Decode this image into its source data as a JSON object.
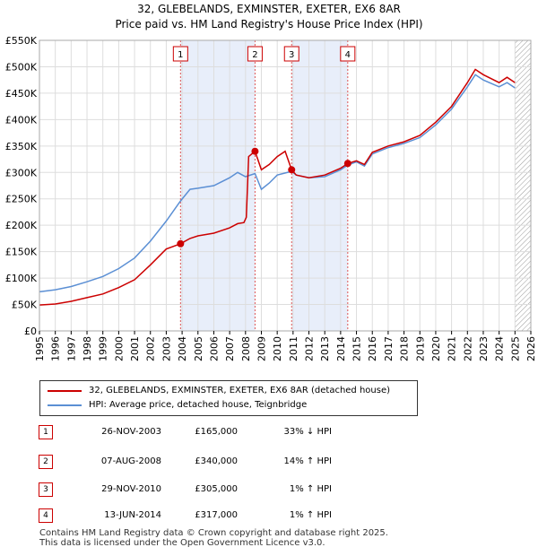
{
  "title_line1": "32, GLEBELANDS, EXMINSTER, EXETER, EX6 8AR",
  "title_line2": "Price paid vs. HM Land Registry's House Price Index (HPI)",
  "chart_data": {
    "type": "line",
    "title": "32, GLEBELANDS, EXMINSTER, EXETER, EX6 8AR — Price paid vs. HM Land Registry's House Price Index (HPI)",
    "xlabel": "",
    "ylabel": "",
    "xlim": [
      1995,
      2026
    ],
    "ylim": [
      0,
      550000
    ],
    "x_ticks": [
      "1995",
      "1996",
      "1997",
      "1998",
      "1999",
      "2000",
      "2001",
      "2002",
      "2003",
      "2004",
      "2005",
      "2006",
      "2007",
      "2008",
      "2009",
      "2010",
      "2011",
      "2012",
      "2013",
      "2014",
      "2015",
      "2016",
      "2017",
      "2018",
      "2019",
      "2020",
      "2021",
      "2022",
      "2023",
      "2024",
      "2025",
      "2026"
    ],
    "y_ticks": [
      {
        "value": 0,
        "label": "£0"
      },
      {
        "value": 50000,
        "label": "£50K"
      },
      {
        "value": 100000,
        "label": "£100K"
      },
      {
        "value": 150000,
        "label": "£150K"
      },
      {
        "value": 200000,
        "label": "£200K"
      },
      {
        "value": 250000,
        "label": "£250K"
      },
      {
        "value": 300000,
        "label": "£300K"
      },
      {
        "value": 350000,
        "label": "£350K"
      },
      {
        "value": 400000,
        "label": "£400K"
      },
      {
        "value": 450000,
        "label": "£450K"
      },
      {
        "value": 500000,
        "label": "£500K"
      },
      {
        "value": 550000,
        "label": "£550K"
      }
    ],
    "shaded_ranges": [
      [
        2003.9,
        2008.6
      ],
      [
        2010.91,
        2014.45
      ]
    ],
    "future_hatch_from": 2025.0,
    "series": [
      {
        "name": "32, GLEBELANDS, EXMINSTER, EXETER, EX6 8AR (detached house)",
        "color": "#cc0000",
        "points": [
          [
            1995,
            49000
          ],
          [
            1996,
            51000
          ],
          [
            1997,
            56000
          ],
          [
            1998,
            63000
          ],
          [
            1999,
            70000
          ],
          [
            2000,
            82000
          ],
          [
            2001,
            97000
          ],
          [
            2002,
            125000
          ],
          [
            2003,
            155000
          ],
          [
            2003.9,
            165000
          ],
          [
            2004.5,
            175000
          ],
          [
            2005,
            180000
          ],
          [
            2006,
            185000
          ],
          [
            2007,
            195000
          ],
          [
            2007.5,
            203000
          ],
          [
            2007.9,
            205000
          ],
          [
            2008.05,
            215000
          ],
          [
            2008.2,
            330000
          ],
          [
            2008.6,
            340000
          ],
          [
            2009,
            305000
          ],
          [
            2009.5,
            315000
          ],
          [
            2010,
            330000
          ],
          [
            2010.5,
            340000
          ],
          [
            2010.91,
            305000
          ],
          [
            2011.2,
            295000
          ],
          [
            2012,
            290000
          ],
          [
            2013,
            295000
          ],
          [
            2014,
            308000
          ],
          [
            2014.45,
            317000
          ],
          [
            2015,
            322000
          ],
          [
            2015.5,
            315000
          ],
          [
            2016,
            338000
          ],
          [
            2017,
            350000
          ],
          [
            2018,
            358000
          ],
          [
            2019,
            370000
          ],
          [
            2020,
            395000
          ],
          [
            2021,
            425000
          ],
          [
            2022,
            470000
          ],
          [
            2022.5,
            495000
          ],
          [
            2023,
            485000
          ],
          [
            2024,
            470000
          ],
          [
            2024.5,
            480000
          ],
          [
            2025,
            470000
          ]
        ]
      },
      {
        "name": "HPI: Average price, detached house, Teignbridge",
        "color": "#5b8fd4",
        "points": [
          [
            1995,
            74000
          ],
          [
            1996,
            78000
          ],
          [
            1997,
            84000
          ],
          [
            1998,
            93000
          ],
          [
            1999,
            103000
          ],
          [
            2000,
            118000
          ],
          [
            2001,
            138000
          ],
          [
            2002,
            170000
          ],
          [
            2003,
            208000
          ],
          [
            2003.9,
            246000
          ],
          [
            2004.5,
            268000
          ],
          [
            2005,
            270000
          ],
          [
            2006,
            275000
          ],
          [
            2007,
            290000
          ],
          [
            2007.5,
            300000
          ],
          [
            2008,
            292000
          ],
          [
            2008.6,
            298000
          ],
          [
            2009,
            268000
          ],
          [
            2009.5,
            280000
          ],
          [
            2010,
            295000
          ],
          [
            2010.91,
            302000
          ],
          [
            2011.2,
            295000
          ],
          [
            2012,
            290000
          ],
          [
            2013,
            292000
          ],
          [
            2014,
            305000
          ],
          [
            2014.45,
            314000
          ],
          [
            2015,
            320000
          ],
          [
            2015.5,
            312000
          ],
          [
            2016,
            335000
          ],
          [
            2017,
            347000
          ],
          [
            2018,
            355000
          ],
          [
            2019,
            366000
          ],
          [
            2020,
            390000
          ],
          [
            2021,
            420000
          ],
          [
            2022,
            462000
          ],
          [
            2022.5,
            485000
          ],
          [
            2023,
            475000
          ],
          [
            2024,
            462000
          ],
          [
            2024.5,
            470000
          ],
          [
            2025,
            460000
          ]
        ]
      }
    ],
    "sales": [
      {
        "id": "1",
        "x": 2003.9,
        "y": 165000
      },
      {
        "id": "2",
        "x": 2008.6,
        "y": 340000
      },
      {
        "id": "3",
        "x": 2010.91,
        "y": 305000
      },
      {
        "id": "4",
        "x": 2014.45,
        "y": 317000
      }
    ]
  },
  "legend": {
    "items": [
      {
        "label": "32, GLEBELANDS, EXMINSTER, EXETER, EX6 8AR (detached house)",
        "color": "#cc0000"
      },
      {
        "label": "HPI: Average price, detached house, Teignbridge",
        "color": "#5b8fd4"
      }
    ]
  },
  "transactions": [
    {
      "num": "1",
      "date": "26-NOV-2003",
      "price": "£165,000",
      "change": "33% ↓ HPI"
    },
    {
      "num": "2",
      "date": "07-AUG-2008",
      "price": "£340,000",
      "change": "14% ↑ HPI"
    },
    {
      "num": "3",
      "date": "29-NOV-2010",
      "price": "£305,000",
      "change": "1% ↑ HPI"
    },
    {
      "num": "4",
      "date": "13-JUN-2014",
      "price": "£317,000",
      "change": "1% ↑ HPI"
    }
  ],
  "footer": {
    "line1": "Contains HM Land Registry data © Crown copyright and database right 2025.",
    "line2": "This data is licensed under the Open Government Licence v3.0."
  }
}
